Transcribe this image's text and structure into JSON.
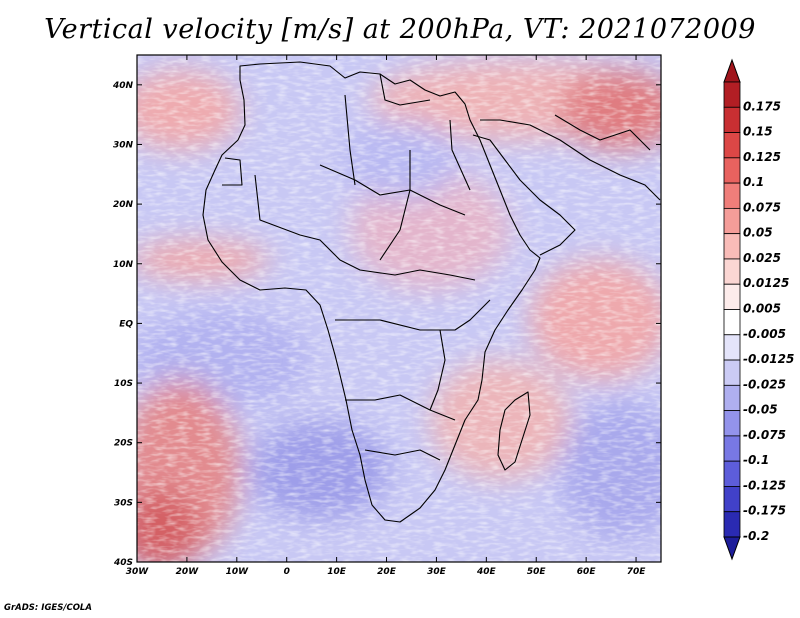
{
  "title": "Vertical velocity [m/s] at 200hPa, VT: 2021072009",
  "credit": "GrADS: IGES/COLA",
  "map": {
    "projection": "latlon",
    "lon_range": [
      -30,
      75
    ],
    "lat_range": [
      -40,
      45
    ],
    "lon_ticks": [
      {
        "value": -30,
        "label": "30W"
      },
      {
        "value": -20,
        "label": "20W"
      },
      {
        "value": -10,
        "label": "10W"
      },
      {
        "value": 0,
        "label": "0"
      },
      {
        "value": 10,
        "label": "10E"
      },
      {
        "value": 20,
        "label": "20E"
      },
      {
        "value": 30,
        "label": "30E"
      },
      {
        "value": 40,
        "label": "40E"
      },
      {
        "value": 50,
        "label": "50E"
      },
      {
        "value": 60,
        "label": "60E"
      },
      {
        "value": 70,
        "label": "70E"
      }
    ],
    "lat_ticks": [
      {
        "value": 40,
        "label": "40N"
      },
      {
        "value": 30,
        "label": "30N"
      },
      {
        "value": 20,
        "label": "20N"
      },
      {
        "value": 10,
        "label": "10N"
      },
      {
        "value": 0,
        "label": "EQ"
      },
      {
        "value": -10,
        "label": "10S"
      },
      {
        "value": -20,
        "label": "20S"
      },
      {
        "value": -30,
        "label": "30S"
      },
      {
        "value": -40,
        "label": "40S"
      }
    ],
    "field_colors": {
      "up": "#d63030",
      "down": "#5050e6",
      "neutral": "#ffffff"
    },
    "coastline_color": "#000000"
  },
  "colorbar": {
    "orientation": "vertical",
    "position": "right",
    "extend": "both",
    "bins": [
      {
        "label": "0.175",
        "color": "#b21e24"
      },
      {
        "label": "0.15",
        "color": "#c82f32"
      },
      {
        "label": "0.125",
        "color": "#dc4746"
      },
      {
        "label": "0.1",
        "color": "#e8625f"
      },
      {
        "label": "0.075",
        "color": "#f07e7a"
      },
      {
        "label": "0.05",
        "color": "#f59d99"
      },
      {
        "label": "0.025",
        "color": "#f9bcb8"
      },
      {
        "label": "0.0125",
        "color": "#fbd6d3"
      },
      {
        "label": "0.005",
        "color": "#fdeceb"
      },
      {
        "label": "-0.005",
        "color": "#ffffff"
      },
      {
        "label": "-0.0125",
        "color": "#e4e4fa"
      },
      {
        "label": "-0.025",
        "color": "#cbcbf5"
      },
      {
        "label": "-0.05",
        "color": "#afaff0"
      },
      {
        "label": "-0.075",
        "color": "#9393eb"
      },
      {
        "label": "-0.1",
        "color": "#7878e4"
      },
      {
        "label": "-0.125",
        "color": "#5d5dda"
      },
      {
        "label": "-0.175",
        "color": "#4141c9"
      },
      {
        "label": "-0.2",
        "color": "#2a2ab2"
      }
    ],
    "top_extension_color": "#a0151c",
    "bottom_extension_color": "#1d1d9a"
  }
}
